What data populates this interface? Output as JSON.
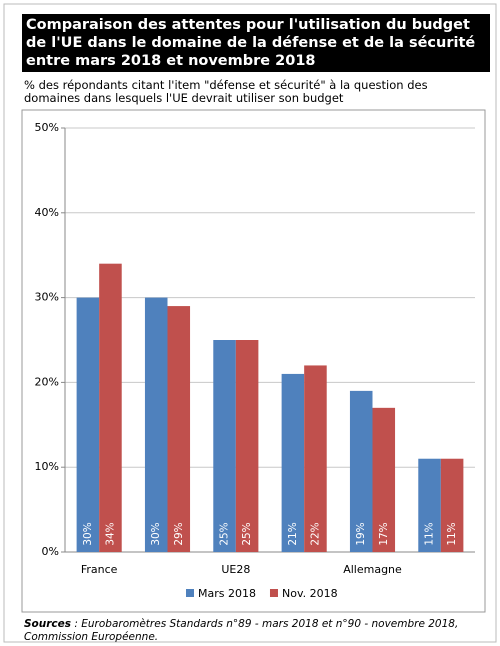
{
  "chart_data": {
    "type": "bar",
    "title": "Comparaison des attentes pour l'utilisation du budget de l'UE dans le domaine de la défense et de la sécurité entre mars 2018 et novembre 2018",
    "subtitle": "% des répondants citant l'item \"défense et sécurité\" à la question des domaines dans lesquels l'UE devrait utiliser son budget",
    "categories": [
      "France",
      null,
      "UE28",
      null,
      "Allemagne",
      null
    ],
    "series": [
      {
        "name": "Mars 2018",
        "color": "#4f81bd",
        "values": [
          30,
          30,
          25,
          21,
          19,
          11
        ],
        "value_labels": [
          "30%",
          "30%",
          "25%",
          "21%",
          "19%",
          "11%"
        ]
      },
      {
        "name": "Nov. 2018",
        "color": "#c0504d",
        "values": [
          34,
          29,
          25,
          22,
          17,
          11
        ],
        "value_labels": [
          "34%",
          "29%",
          "25%",
          "22%",
          "17%",
          "11%"
        ]
      }
    ],
    "ylim": [
      0,
      50
    ],
    "yticks": [
      {
        "value": 0,
        "label": "0%"
      },
      {
        "value": 10,
        "label": "10%"
      },
      {
        "value": 20,
        "label": "20%"
      },
      {
        "value": 30,
        "label": "30%"
      },
      {
        "value": 40,
        "label": "40%"
      },
      {
        "value": 50,
        "label": "50%"
      }
    ],
    "grid": true,
    "legend": "bottom",
    "sources_label": "Sources",
    "sources_text": " : Eurobaromètres Standards n°89 - mars 2018 et n°90 - novembre 2018, Commission Européenne."
  }
}
